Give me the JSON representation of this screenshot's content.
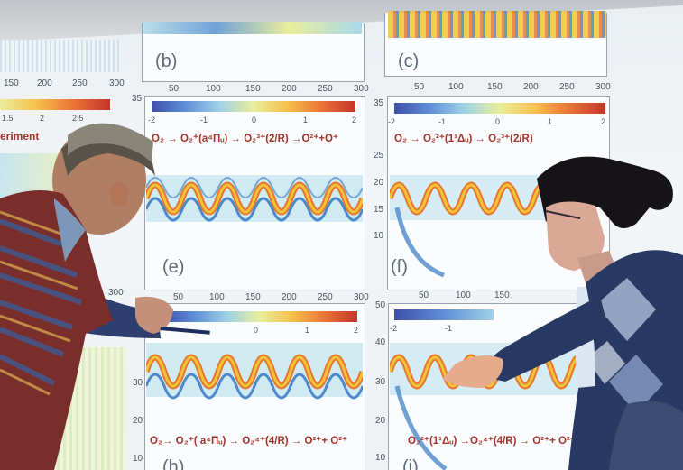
{
  "projection": {
    "left_strip": {
      "x_ticks": [
        "150",
        "200",
        "250",
        "300"
      ],
      "cbar_ticks": [
        "1.5",
        "2",
        "2.5"
      ],
      "label": "eriment"
    },
    "panel_b": {
      "letter": "(b)",
      "x_ticks": [
        "50",
        "100",
        "150",
        "200",
        "250",
        "300"
      ]
    },
    "panel_c": {
      "letter": "(c)",
      "x_ticks": [
        "50",
        "100",
        "150",
        "200",
        "250",
        "300"
      ]
    },
    "panel_e": {
      "letter": "(e)",
      "y_top": "35",
      "cbar_ticks": [
        "-2",
        "-1",
        "0",
        "1",
        "2"
      ],
      "equation": "O₂ → O₂⁺(a⁴Πᵤ) → O₂³⁺(2/R) →O²⁺+O⁺",
      "x_ticks": [
        "50",
        "100",
        "150",
        "200",
        "250",
        "300"
      ]
    },
    "panel_f": {
      "letter": "(f)",
      "y_ticks": [
        "35",
        "25",
        "20",
        "15",
        "10"
      ],
      "cbar_ticks": [
        "-2",
        "-1",
        "0",
        "1",
        "2"
      ],
      "equation": "O₂ → O₂²⁺(1¹Δᵤ) → O₂³⁺(2/R)",
      "x_ticks": [
        "50",
        "100",
        "150"
      ]
    },
    "panel_h": {
      "letter": "(h)",
      "y_ticks": [
        "40",
        "30",
        "20",
        "10"
      ],
      "cbar_ticks": [
        "0",
        "1",
        "2"
      ],
      "equation": "O₂→ O₂⁺( a⁴Πᵤ) → O₂⁴⁺(4/R) → O²⁺+ O²⁺"
    },
    "panel_i": {
      "letter": "(i)",
      "y_ticks": [
        "50",
        "40",
        "30",
        "20",
        "10"
      ],
      "cbar_ticks": [
        "-2",
        "-1"
      ],
      "equation": "O₂²⁺(1¹Δᵤ) →O₂⁴⁺(4/R) → O²⁺+ O²⁺"
    },
    "misc_ticks": {
      "t_300_left": "300",
      "t_250_arm": "250",
      "t_40": "40"
    }
  },
  "colors": {
    "wave_yellow": "#f2c33a",
    "wave_orange": "#e8772e",
    "wave_blue": "#4d88c9",
    "wave_light": "#a9d9ea",
    "text_red": "#a3342a"
  }
}
